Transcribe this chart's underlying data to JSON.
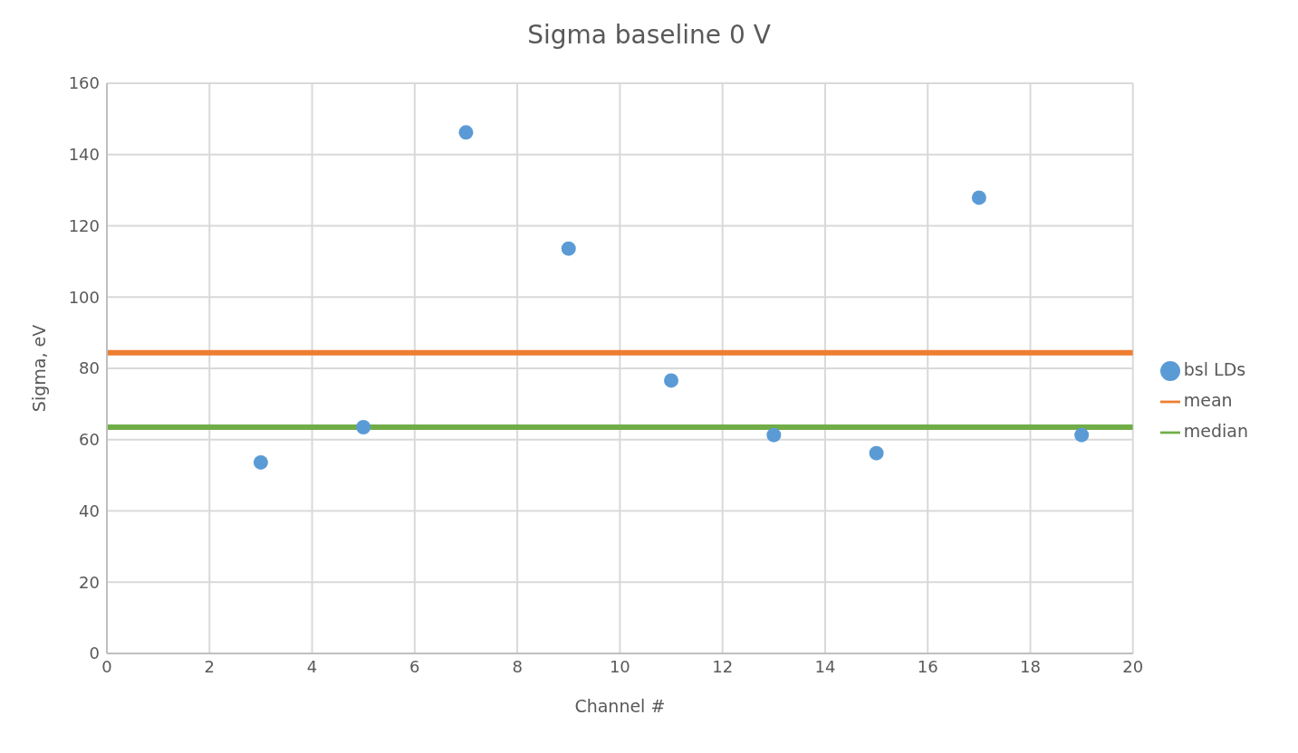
{
  "chart_data": {
    "type": "scatter",
    "title": "Sigma baseline 0 V",
    "xlabel": "Channel #",
    "ylabel": "Sigma, eV",
    "xlim": [
      0,
      20
    ],
    "xticks": [
      0,
      2,
      4,
      6,
      8,
      10,
      12,
      14,
      16,
      18,
      20
    ],
    "ylim": [
      0,
      160
    ],
    "yticks": [
      0,
      20,
      40,
      60,
      80,
      100,
      120,
      140,
      160
    ],
    "grid": true,
    "legend": "right",
    "series": [
      {
        "name": "bsl LDs",
        "color": "#5b9bd5",
        "x": [
          3,
          5,
          7,
          9,
          11,
          13,
          15,
          17,
          19
        ],
        "values": [
          53.6,
          63.5,
          146.2,
          113.6,
          76.6,
          61.3,
          56.2,
          127.9,
          61.3
        ]
      },
      {
        "name": "mean",
        "color": "#ed7d31",
        "type": "line",
        "x": [
          0,
          20
        ],
        "values": [
          84.4,
          84.4
        ]
      },
      {
        "name": "median",
        "color": "#70ad47",
        "type": "line",
        "x": [
          0,
          20
        ],
        "values": [
          63.5,
          63.5
        ]
      }
    ]
  }
}
